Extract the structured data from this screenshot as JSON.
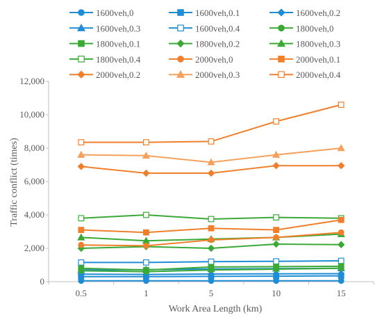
{
  "chart_data": {
    "type": "line",
    "xlabel": "Work Area Length (km)",
    "ylabel": "Traffic conflict (times)",
    "categories": [
      "0.5",
      "1",
      "5",
      "10",
      "15"
    ],
    "ylim": [
      0,
      12000
    ],
    "yticks": [
      0,
      2000,
      4000,
      6000,
      8000,
      10000,
      12000
    ],
    "ytick_labels": [
      "0",
      "2,000",
      "4,000",
      "6,000",
      "8,000",
      "10,000",
      "12,000"
    ],
    "grid": false,
    "legend_position": "top",
    "series": [
      {
        "name": "1600veh,0",
        "color": "#1f8dd6",
        "marker": "circle",
        "filled": true,
        "values": [
          50,
          50,
          50,
          50,
          50
        ]
      },
      {
        "name": "1600veh,0.1",
        "color": "#1f8dd6",
        "marker": "square",
        "filled": true,
        "values": [
          300,
          300,
          320,
          330,
          350
        ]
      },
      {
        "name": "1600veh,0.2",
        "color": "#1f8dd6",
        "marker": "diamond",
        "filled": true,
        "values": [
          450,
          430,
          460,
          470,
          480
        ]
      },
      {
        "name": "1600veh,0.3",
        "color": "#1f8dd6",
        "marker": "triangle",
        "filled": true,
        "values": [
          700,
          720,
          760,
          780,
          800
        ]
      },
      {
        "name": "1600veh,0.4",
        "color": "#1f8dd6",
        "marker": "square",
        "filled": false,
        "values": [
          1150,
          1150,
          1200,
          1220,
          1250
        ]
      },
      {
        "name": "1800veh,0",
        "color": "#3aa935",
        "marker": "circle",
        "filled": true,
        "values": [
          650,
          600,
          700,
          750,
          800
        ]
      },
      {
        "name": "1800veh,0.1",
        "color": "#3aa935",
        "marker": "square",
        "filled": true,
        "values": [
          800,
          700,
          880,
          900,
          920
        ]
      },
      {
        "name": "1800veh,0.2",
        "color": "#3aa935",
        "marker": "diamond",
        "filled": true,
        "values": [
          2000,
          2100,
          2000,
          2250,
          2220
        ]
      },
      {
        "name": "1800veh,0.3",
        "color": "#3aa935",
        "marker": "triangle",
        "filled": true,
        "values": [
          2650,
          2450,
          2550,
          2650,
          2850
        ]
      },
      {
        "name": "1800veh,0.4",
        "color": "#3aa935",
        "marker": "square",
        "filled": false,
        "values": [
          3800,
          4000,
          3750,
          3850,
          3800
        ]
      },
      {
        "name": "2000veh,0",
        "color": "#f07f2b",
        "marker": "circle",
        "filled": true,
        "values": [
          2200,
          2150,
          2500,
          2650,
          2950
        ]
      },
      {
        "name": "2000veh,0.1",
        "color": "#f07f2b",
        "marker": "square",
        "filled": true,
        "values": [
          3100,
          2950,
          3200,
          3100,
          3700
        ]
      },
      {
        "name": "2000veh,0.2",
        "color": "#f07f2b",
        "marker": "diamond",
        "filled": true,
        "values": [
          6900,
          6500,
          6500,
          6950,
          6950
        ]
      },
      {
        "name": "2000veh,0.3",
        "color": "#f5a05c",
        "marker": "triangle",
        "filled": true,
        "values": [
          7600,
          7550,
          7150,
          7600,
          8000
        ]
      },
      {
        "name": "2000veh,0.4",
        "color": "#f07f2b",
        "marker": "square",
        "filled": false,
        "values": [
          8350,
          8350,
          8400,
          9600,
          10600
        ]
      }
    ]
  }
}
